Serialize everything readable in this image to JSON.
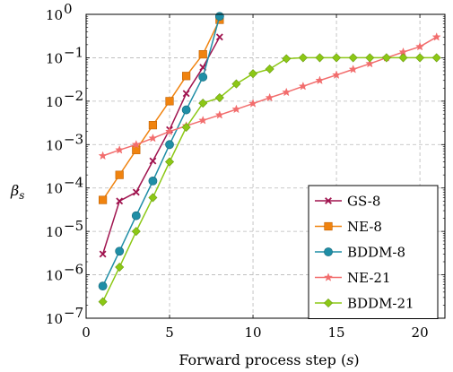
{
  "chart_data": {
    "type": "line",
    "xlabel": "Forward process step (s)",
    "xlabel_parts": {
      "text": "Forward process step (",
      "var": "s",
      "close": ")"
    },
    "ylabel": "β_s",
    "ylabel_parts": {
      "base": "β",
      "sub": "s"
    },
    "xlim": [
      0,
      21.5
    ],
    "ylim": [
      1e-07,
      1
    ],
    "yscale": "log",
    "grid": true,
    "legend_position": "bottom-right",
    "x_ticks": [
      0,
      5,
      10,
      15,
      20
    ],
    "x_tick_labels": [
      "0",
      "5",
      "10",
      "15",
      "20"
    ],
    "y_ticks": [
      {
        "value": 1e-07,
        "base": "10",
        "exp": "−7"
      },
      {
        "value": 1e-06,
        "base": "10",
        "exp": "−6"
      },
      {
        "value": 1e-05,
        "base": "10",
        "exp": "−5"
      },
      {
        "value": 0.0001,
        "base": "10",
        "exp": "−4"
      },
      {
        "value": 0.001,
        "base": "10",
        "exp": "−3"
      },
      {
        "value": 0.01,
        "base": "10",
        "exp": "−2"
      },
      {
        "value": 0.1,
        "base": "10",
        "exp": "−1"
      },
      {
        "value": 1,
        "base": "10",
        "exp": "0"
      }
    ],
    "series": [
      {
        "name": "GS-8",
        "color": "#a0144f",
        "marker": "x",
        "x": [
          1,
          2,
          3,
          4,
          5,
          6,
          7,
          8
        ],
        "y": [
          3e-06,
          5e-05,
          8e-05,
          0.00042,
          0.0022,
          0.015,
          0.06,
          0.3
        ]
      },
      {
        "name": "NE-8",
        "color": "#f0830f",
        "marker": "square",
        "x": [
          1,
          2,
          3,
          4,
          5,
          6,
          7,
          8
        ],
        "y": [
          5.3e-05,
          0.0002,
          0.00075,
          0.0028,
          0.01,
          0.038,
          0.12,
          0.75
        ]
      },
      {
        "name": "BDDM-8",
        "color": "#1f8ea6",
        "marker": "circle",
        "x": [
          1,
          2,
          3,
          4,
          5,
          6,
          7,
          8
        ],
        "y": [
          5.5e-07,
          3.5e-06,
          2.3e-05,
          0.000145,
          0.001,
          0.0063,
          0.036,
          0.9
        ]
      },
      {
        "name": "NE-21",
        "color": "#f26d6d",
        "marker": "star",
        "x": [
          1,
          2,
          3,
          4,
          5,
          6,
          7,
          8,
          9,
          10,
          11,
          12,
          13,
          14,
          15,
          16,
          17,
          18,
          19,
          20,
          21
        ],
        "y": [
          0.00055,
          0.00075,
          0.001,
          0.0014,
          0.002,
          0.0027,
          0.0036,
          0.0048,
          0.0065,
          0.0088,
          0.012,
          0.016,
          0.022,
          0.03,
          0.04,
          0.054,
          0.073,
          0.1,
          0.135,
          0.18,
          0.3
        ]
      },
      {
        "name": "BDDM-21",
        "color": "#8cc815",
        "marker": "diamond",
        "x": [
          1,
          2,
          3,
          4,
          5,
          6,
          7,
          8,
          9,
          10,
          11,
          12,
          13,
          14,
          15,
          16,
          17,
          18,
          19,
          20,
          21
        ],
        "y": [
          2.4e-07,
          1.5e-06,
          1e-05,
          6e-05,
          0.0004,
          0.0025,
          0.009,
          0.012,
          0.025,
          0.043,
          0.055,
          0.095,
          0.1,
          0.1,
          0.1,
          0.1,
          0.1,
          0.1,
          0.1,
          0.1,
          0.1
        ]
      }
    ]
  }
}
